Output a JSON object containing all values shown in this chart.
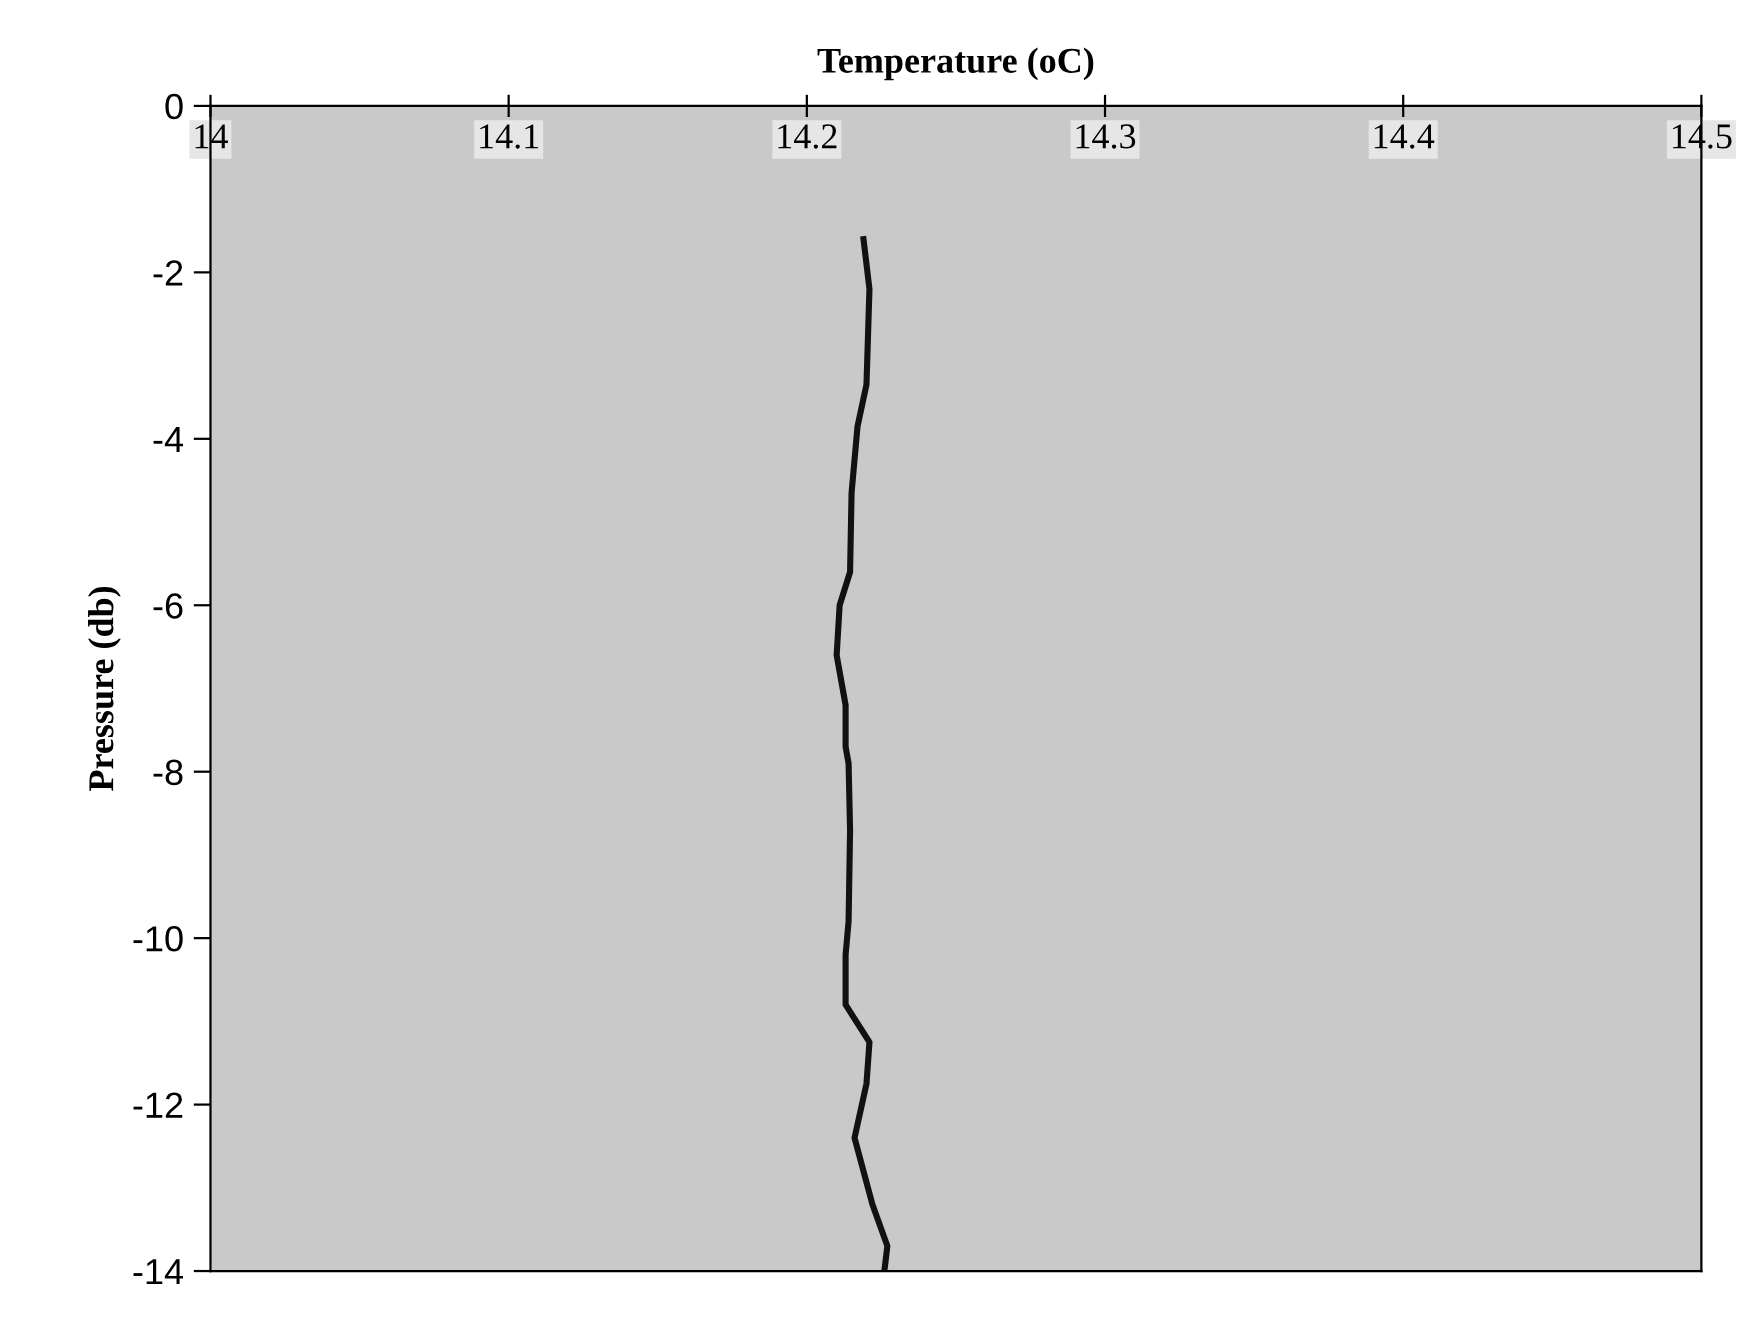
{
  "chart_data": {
    "type": "line",
    "xlabel": "Temperature (oC)",
    "ylabel": "Pressure (db)",
    "series": [
      {
        "color": "#111111",
        "x": [
          14.219,
          14.221,
          14.22,
          14.217,
          14.215,
          14.2145,
          14.211,
          14.21,
          14.213,
          14.213,
          14.214,
          14.2145,
          14.214,
          14.213,
          14.213,
          14.221,
          14.22,
          14.216,
          14.222,
          14.227,
          14.226
        ],
        "values": [
          -1.6,
          -2.2,
          -3.35,
          -3.85,
          -4.65,
          -5.6,
          -6.0,
          -6.6,
          -7.2,
          -7.7,
          -7.9,
          -8.7,
          -9.8,
          -10.2,
          -10.8,
          -11.25,
          -11.75,
          -12.4,
          -13.2,
          -13.7,
          -14.0
        ]
      }
    ],
    "xlim": [
      14,
      14.5
    ],
    "xticks": [
      14,
      14.1,
      14.2,
      14.3,
      14.4,
      14.5
    ],
    "ylim": [
      -14,
      0
    ],
    "yticks": [
      0,
      -2,
      -4,
      -6,
      -8,
      -10,
      -12,
      -14
    ],
    "grid": false,
    "legend": false,
    "marker": "none",
    "line_style": "solid"
  }
}
